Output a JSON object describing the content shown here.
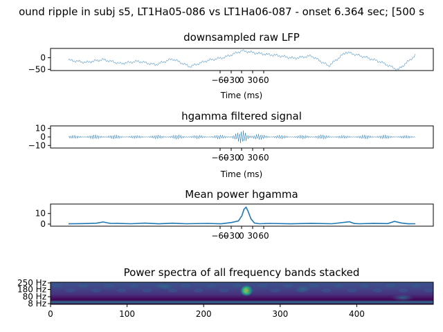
{
  "suptitle": "ound ripple in subj s5, LT1Ha05-086 vs LT1Ha06-087 - onset 6.364 sec; [500 s",
  "chart_data": [
    {
      "type": "line",
      "title": "downsampled raw LFP",
      "xlabel": "Time (ms)",
      "ylabel": "",
      "ylim": [
        -55,
        40
      ],
      "yticks": [
        "0",
        "−50"
      ],
      "ytick_values": [
        0,
        -50
      ],
      "xticks": [
        "−60",
        "−30",
        "0",
        "30",
        "60"
      ],
      "xtick_values": [
        -60,
        -30,
        0,
        30,
        60
      ],
      "series_color": "#1f77b4",
      "series": [
        {
          "x": [
            0,
            25,
            50,
            75,
            100,
            125,
            150,
            175,
            200,
            225,
            250,
            275,
            300,
            325,
            350,
            375,
            400,
            425,
            450,
            475,
            500
          ],
          "values": [
            -10,
            -20,
            -8,
            -25,
            -15,
            -30,
            -5,
            -38,
            -12,
            2,
            30,
            18,
            10,
            -2,
            8,
            -35,
            24,
            5,
            -18,
            -52,
            10
          ]
        }
      ]
    },
    {
      "type": "line",
      "title": "hgamma filtered signal",
      "xlabel": "Time (ms)",
      "ylabel": "",
      "ylim": [
        -13,
        13
      ],
      "yticks": [
        "10",
        "0",
        "−10"
      ],
      "ytick_values": [
        10,
        0,
        -10
      ],
      "xticks": [
        "−60",
        "−30",
        "0",
        "30",
        "60"
      ],
      "xtick_values": [
        -60,
        -30,
        0,
        30,
        60
      ],
      "series_color": "#1f77b4",
      "series": [
        {
          "x": [
            0,
            50,
            100,
            150,
            200,
            230,
            245,
            255,
            265,
            280,
            320,
            360,
            400,
            440,
            480,
            500
          ],
          "values": [
            2,
            3,
            2,
            3,
            2,
            3,
            6,
            11,
            5,
            3,
            2,
            3,
            2,
            3,
            2,
            2
          ]
        }
      ]
    },
    {
      "type": "line",
      "title": "Mean power hgamma",
      "xlabel": "",
      "ylabel": "",
      "ylim": [
        -2,
        19
      ],
      "yticks": [
        "10",
        "0"
      ],
      "ytick_values": [
        10,
        0
      ],
      "xticks": [
        "−60",
        "−30",
        "0",
        "30",
        "60"
      ],
      "xtick_values": [
        -60,
        -30,
        0,
        30,
        60
      ],
      "series_color": "#1f77b4",
      "series": [
        {
          "x": [
            0,
            20,
            40,
            50,
            60,
            70,
            90,
            110,
            130,
            150,
            170,
            200,
            220,
            235,
            245,
            250,
            253,
            256,
            259,
            263,
            268,
            275,
            290,
            320,
            350,
            380,
            405,
            412,
            420,
            440,
            460,
            470,
            480,
            490,
            500
          ],
          "values": [
            0.2,
            0.4,
            0.8,
            2.0,
            0.6,
            0.7,
            0.3,
            0.9,
            0.2,
            0.8,
            0.3,
            0.6,
            0.2,
            1.5,
            3.0,
            8.0,
            14.0,
            16.0,
            12.0,
            5.0,
            1.0,
            0.3,
            0.6,
            0.2,
            0.7,
            0.3,
            2.2,
            0.5,
            0.3,
            0.7,
            0.4,
            2.5,
            1.0,
            0.2,
            0.3
          ]
        }
      ]
    },
    {
      "type": "heatmap",
      "title": "Power spectra of all frequency bands stacked",
      "xlabel": "",
      "ylabel": "",
      "xlim": [
        0,
        500
      ],
      "xticks": [
        "0",
        "100",
        "200",
        "300",
        "400"
      ],
      "xtick_values": [
        0,
        100,
        200,
        300,
        400
      ],
      "yticks": [
        "250 Hz",
        "180 Hz",
        "80 Hz",
        "8 Hz"
      ],
      "hotspots": [
        {
          "x": 256,
          "band": 0.38,
          "intensity": 1.0
        },
        {
          "x": 460,
          "band": 0.7,
          "intensity": 0.45
        },
        {
          "x": 150,
          "band": 0.2,
          "intensity": 0.2
        },
        {
          "x": 330,
          "band": 0.3,
          "intensity": 0.2
        }
      ]
    }
  ]
}
